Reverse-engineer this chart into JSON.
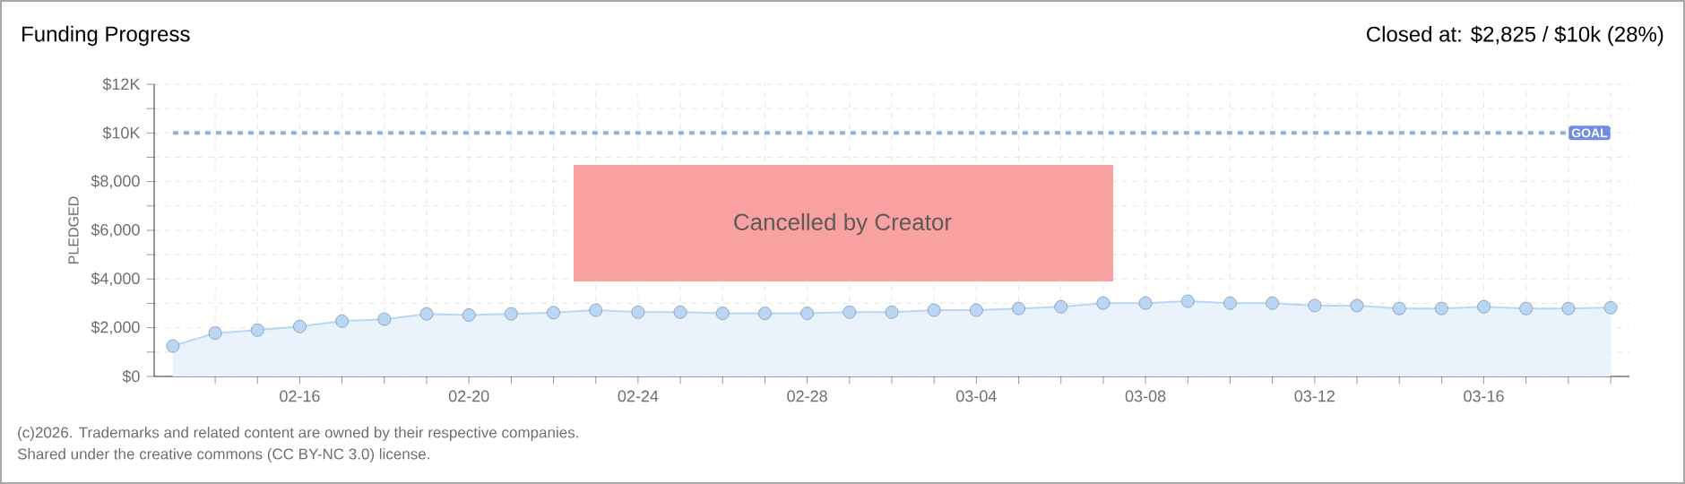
{
  "chart_data": {
    "type": "area",
    "title": "Funding Progress",
    "subtitle": "Closed at: $2,825 / $10k (28%)",
    "ylabel": "PLEDGED",
    "x": [
      "2026-02-13",
      "2026-02-14",
      "2026-02-15",
      "2026-02-16",
      "2026-02-17",
      "2026-02-18",
      "2026-02-19",
      "2026-02-20",
      "2026-02-21",
      "2026-02-22",
      "2026-02-23",
      "2026-02-24",
      "2026-02-25",
      "2026-02-26",
      "2026-02-27",
      "2026-02-28",
      "2026-03-01",
      "2026-03-02",
      "2026-03-03",
      "2026-03-04",
      "2026-03-05",
      "2026-03-06",
      "2026-03-07",
      "2026-03-08",
      "2026-03-09",
      "2026-03-10",
      "2026-03-11",
      "2026-03-12",
      "2026-03-13",
      "2026-03-14",
      "2026-03-15",
      "2026-03-16",
      "2026-03-17",
      "2026-03-18",
      "2026-03-19"
    ],
    "series": [
      {
        "color": "#b9d6f5",
        "values": [
          1250,
          1780,
          1900,
          2050,
          2270,
          2350,
          2570,
          2520,
          2570,
          2620,
          2720,
          2640,
          2640,
          2590,
          2590,
          2590,
          2640,
          2640,
          2720,
          2720,
          2790,
          2860,
          3010,
          3010,
          3090,
          3010,
          3010,
          2910,
          2910,
          2790,
          2790,
          2860,
          2790,
          2790,
          2825
        ]
      }
    ],
    "xlim": [
      "2026-02-13",
      "2026-03-19"
    ],
    "xticks": [
      {
        "value": "2026-02-14",
        "label": null
      },
      {
        "value": "2026-02-15",
        "label": null
      },
      {
        "value": "2026-02-16",
        "label": "02-16"
      },
      {
        "value": "2026-02-17",
        "label": null
      },
      {
        "value": "2026-02-18",
        "label": null
      },
      {
        "value": "2026-02-19",
        "label": null
      },
      {
        "value": "2026-02-20",
        "label": "02-20"
      },
      {
        "value": "2026-02-21",
        "label": null
      },
      {
        "value": "2026-02-22",
        "label": null
      },
      {
        "value": "2026-02-23",
        "label": null
      },
      {
        "value": "2026-02-24",
        "label": "02-24"
      },
      {
        "value": "2026-02-25",
        "label": null
      },
      {
        "value": "2026-02-26",
        "label": null
      },
      {
        "value": "2026-02-27",
        "label": null
      },
      {
        "value": "2026-02-28",
        "label": "02-28"
      },
      {
        "value": "2026-03-01",
        "label": null
      },
      {
        "value": "2026-03-02",
        "label": null
      },
      {
        "value": "2026-03-03",
        "label": null
      },
      {
        "value": "2026-03-04",
        "label": "03-04"
      },
      {
        "value": "2026-03-05",
        "label": null
      },
      {
        "value": "2026-03-06",
        "label": null
      },
      {
        "value": "2026-03-07",
        "label": null
      },
      {
        "value": "2026-03-08",
        "label": "03-08"
      },
      {
        "value": "2026-03-09",
        "label": null
      },
      {
        "value": "2026-03-10",
        "label": null
      },
      {
        "value": "2026-03-11",
        "label": null
      },
      {
        "value": "2026-03-12",
        "label": "03-12"
      },
      {
        "value": "2026-03-13",
        "label": null
      },
      {
        "value": "2026-03-14",
        "label": null
      },
      {
        "value": "2026-03-15",
        "label": null
      },
      {
        "value": "2026-03-16",
        "label": "03-16"
      },
      {
        "value": "2026-03-17",
        "label": null
      },
      {
        "value": "2026-03-18",
        "label": null
      },
      {
        "value": "2026-03-19",
        "label": null
      }
    ],
    "ylim": [
      0,
      12000
    ],
    "yticks": [
      {
        "value": 0,
        "label": "$0"
      },
      {
        "value": 1000,
        "label": null
      },
      {
        "value": 2000,
        "label": "$2,000"
      },
      {
        "value": 3000,
        "label": null
      },
      {
        "value": 4000,
        "label": "$4,000"
      },
      {
        "value": 5000,
        "label": null
      },
      {
        "value": 6000,
        "label": "$6,000"
      },
      {
        "value": 7000,
        "label": null
      },
      {
        "value": 8000,
        "label": "$8,000"
      },
      {
        "value": 9000,
        "label": null
      },
      {
        "value": 10000,
        "label": "$10K"
      },
      {
        "value": 11000,
        "label": null
      },
      {
        "value": 12000,
        "label": "$12K"
      }
    ],
    "ref_lines": [
      {
        "axis": "y",
        "value": 10000,
        "label": "GOAL",
        "color": "#8fb0d8",
        "line_style": "dashed"
      }
    ],
    "annotations": [
      "Cancelled by Creator",
      "(c)2026. Trademarks and related content are owned by their respective companies.",
      "Shared under the creative commons (CC BY-NC 3.0) license."
    ],
    "grid": true,
    "marker": "circle"
  }
}
